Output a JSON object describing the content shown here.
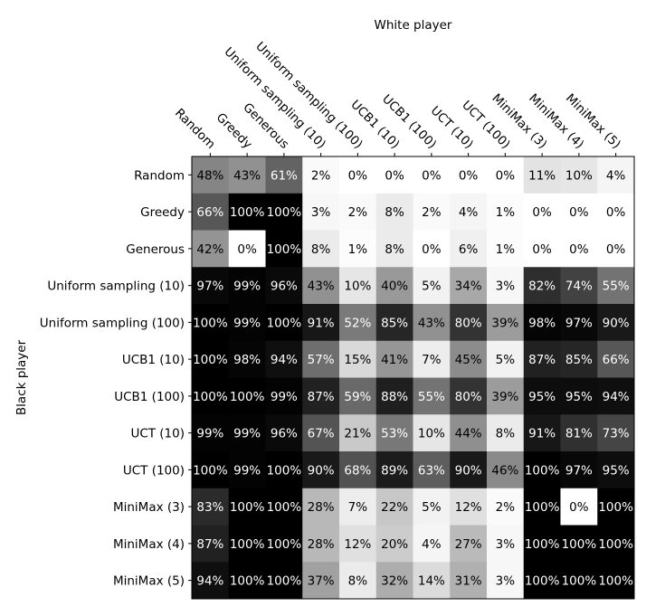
{
  "chart_data": {
    "type": "heatmap",
    "xlabel": "White player",
    "ylabel": "Black player",
    "colormap": "grayscale: 0% white, 100% black",
    "x_categories": [
      "Random",
      "Greedy",
      "Generous",
      "Uniform sampling (10)",
      "Uniform sampling (100)",
      "UCB1 (10)",
      "UCB1 (100)",
      "UCT (10)",
      "UCT (100)",
      "MiniMax (3)",
      "MiniMax (4)",
      "MiniMax (5)"
    ],
    "y_categories": [
      "Random",
      "Greedy",
      "Generous",
      "Uniform sampling (10)",
      "Uniform sampling (100)",
      "UCB1 (10)",
      "UCB1 (100)",
      "UCT (10)",
      "UCT (100)",
      "MiniMax (3)",
      "MiniMax (4)",
      "MiniMax (5)"
    ],
    "values": [
      [
        48,
        43,
        61,
        2,
        0,
        0,
        0,
        0,
        0,
        11,
        10,
        4
      ],
      [
        66,
        100,
        100,
        3,
        2,
        8,
        2,
        4,
        1,
        0,
        0,
        0
      ],
      [
        42,
        0,
        100,
        8,
        1,
        8,
        0,
        6,
        1,
        0,
        0,
        0
      ],
      [
        97,
        99,
        96,
        43,
        10,
        40,
        5,
        34,
        3,
        82,
        74,
        55
      ],
      [
        100,
        99,
        100,
        91,
        52,
        85,
        43,
        80,
        39,
        98,
        97,
        90
      ],
      [
        100,
        98,
        94,
        57,
        15,
        41,
        7,
        45,
        5,
        87,
        85,
        66
      ],
      [
        100,
        100,
        99,
        87,
        59,
        88,
        55,
        80,
        39,
        95,
        95,
        94
      ],
      [
        99,
        99,
        96,
        67,
        21,
        53,
        10,
        44,
        8,
        91,
        81,
        73
      ],
      [
        100,
        99,
        100,
        90,
        68,
        89,
        63,
        90,
        46,
        100,
        97,
        95
      ],
      [
        83,
        100,
        100,
        28,
        7,
        22,
        5,
        12,
        2,
        100,
        0,
        100
      ],
      [
        87,
        100,
        100,
        28,
        12,
        20,
        4,
        27,
        3,
        100,
        100,
        100
      ],
      [
        94,
        100,
        100,
        37,
        8,
        32,
        14,
        31,
        3,
        100,
        100,
        100
      ]
    ],
    "value_suffix": "%",
    "grid": false
  }
}
